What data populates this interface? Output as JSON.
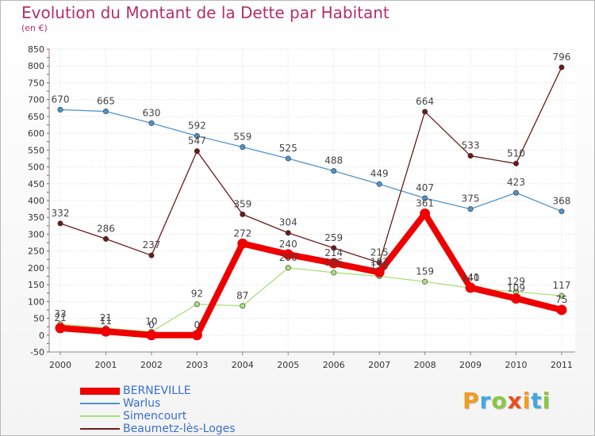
{
  "title": "Evolution du Montant de la Dette par Habitant",
  "unit": "(en €)",
  "logo": {
    "letters": [
      "P",
      "r",
      "o",
      "x",
      "i",
      "t",
      "i"
    ],
    "colors": [
      "#f39c1f",
      "#3fa9e0",
      "#8cc63f",
      "#e94e1b",
      "#f39c1f",
      "#3fa9e0",
      "#8cc63f"
    ]
  },
  "chart_data": {
    "type": "line",
    "x": [
      "2000",
      "2001",
      "2002",
      "2003",
      "2004",
      "2005",
      "2006",
      "2007",
      "2008",
      "2009",
      "2010",
      "2011"
    ],
    "ylim": [
      -50,
      850
    ],
    "yticks": [
      "-50",
      "0",
      "50",
      "100",
      "150",
      "200",
      "250",
      "300",
      "350",
      "400",
      "450",
      "500",
      "550",
      "600",
      "650",
      "700",
      "750",
      "800",
      "850"
    ],
    "grid": true,
    "legend_position": "bottom-left",
    "series": [
      {
        "name": "BERNEVILLE",
        "color": "#ee0000",
        "values": [
          21,
          11,
          0,
          0,
          272,
          240,
          214,
          187,
          361,
          141,
          109,
          75
        ],
        "labels": [
          "21",
          "11",
          "0",
          "0",
          "272",
          "240",
          "214",
          "187",
          "361",
          "141",
          "109",
          "75"
        ]
      },
      {
        "name": "Warlus",
        "color": "#4f94cd",
        "values": [
          670,
          665,
          630,
          592,
          559,
          525,
          488,
          449,
          407,
          375,
          423,
          368
        ],
        "labels": [
          "670",
          "665",
          "630",
          "592",
          "559",
          "525",
          "488",
          "449",
          "407",
          "375",
          "423",
          "368"
        ]
      },
      {
        "name": "Simencourt",
        "color": "#a8e07a",
        "values": [
          33,
          21,
          10,
          92,
          87,
          200,
          186,
          175,
          159,
          140,
          129,
          117
        ],
        "labels": [
          "33",
          "21",
          "10",
          "92",
          "87",
          "200",
          "186",
          "175",
          "159",
          "140",
          "129",
          "117"
        ]
      },
      {
        "name": "Beaumetz-lès-Loges",
        "color": "#6b1a1a",
        "values": [
          332,
          286,
          237,
          547,
          359,
          304,
          259,
          215,
          664,
          533,
          510,
          796
        ],
        "labels": [
          "332",
          "286",
          "237",
          "547",
          "359",
          "304",
          "259",
          "215",
          "664",
          "533",
          "510",
          "796"
        ]
      }
    ]
  }
}
